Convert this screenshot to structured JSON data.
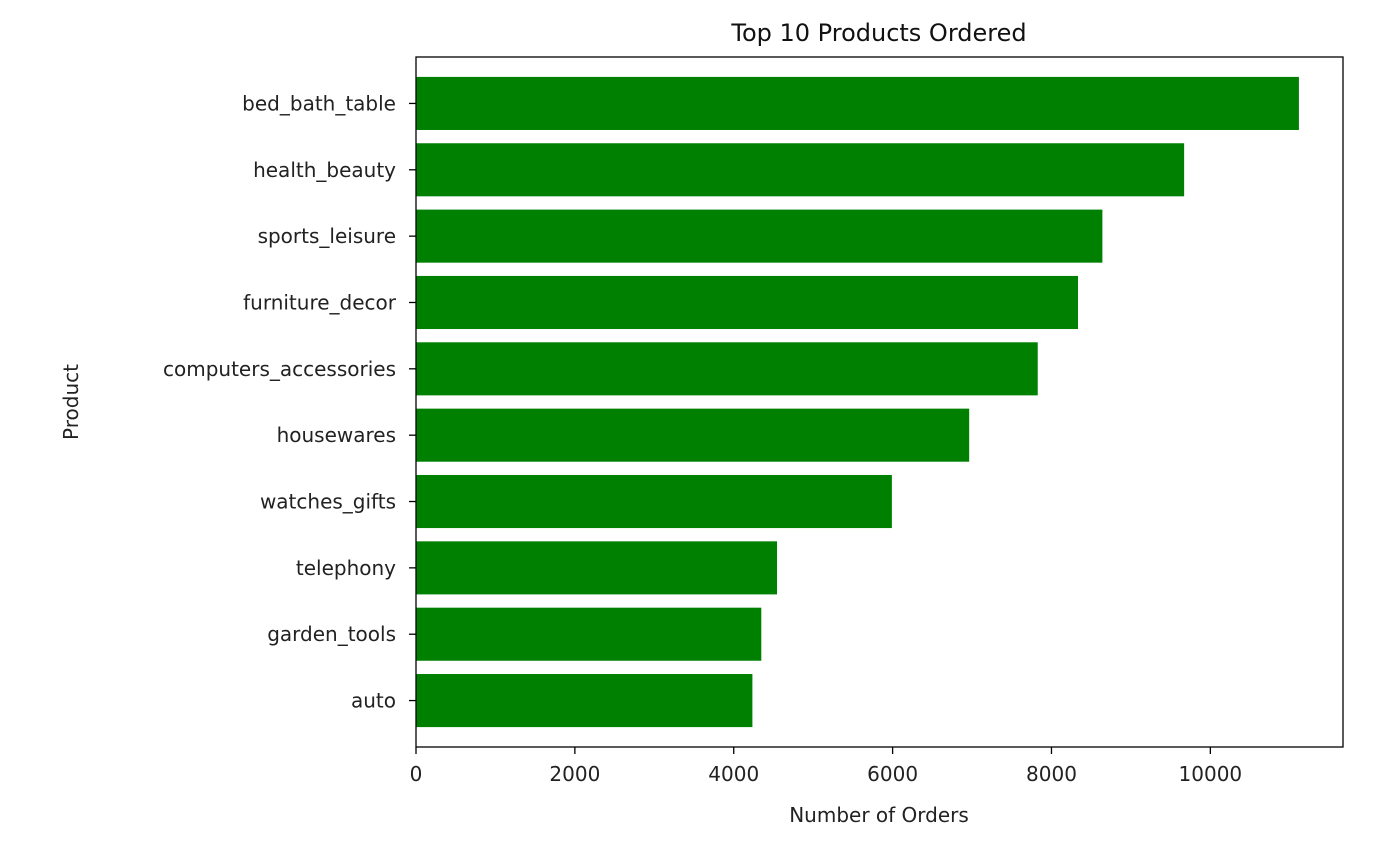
{
  "chart_data": {
    "type": "bar",
    "orientation": "horizontal",
    "title": "Top 10 Products Ordered",
    "xlabel": "Number of Orders",
    "ylabel": "Product",
    "categories": [
      "bed_bath_table",
      "health_beauty",
      "sports_leisure",
      "furniture_decor",
      "computers_accessories",
      "housewares",
      "watches_gifts",
      "telephony",
      "garden_tools",
      "auto"
    ],
    "values": [
      11115,
      9670,
      8641,
      8334,
      7827,
      6964,
      5991,
      4545,
      4347,
      4235
    ],
    "xlim": [
      0,
      11670
    ],
    "xticks": [
      0,
      2000,
      4000,
      6000,
      8000,
      10000
    ],
    "bar_color": "#008000",
    "grid": false,
    "legend": "none"
  }
}
